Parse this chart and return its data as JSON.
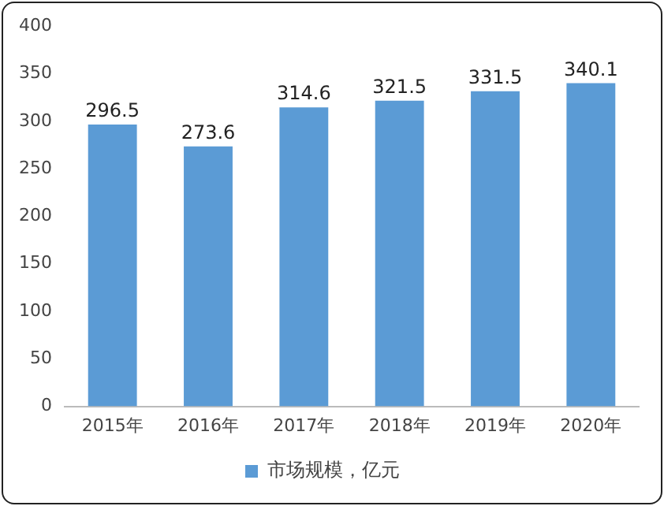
{
  "chart_data": {
    "type": "bar",
    "categories": [
      "2015年",
      "2016年",
      "2017年",
      "2018年",
      "2019年",
      "2020年"
    ],
    "series": [
      {
        "name": "市场规模，亿元",
        "color": "#5b9bd5",
        "values": [
          296.5,
          273.6,
          314.6,
          321.5,
          331.5,
          340.1
        ]
      }
    ],
    "ylim": [
      0,
      400
    ],
    "yticks": [
      0,
      50,
      100,
      150,
      200,
      250,
      300,
      350,
      400
    ],
    "grid": false,
    "legend": "bottom",
    "data_labels": true
  }
}
